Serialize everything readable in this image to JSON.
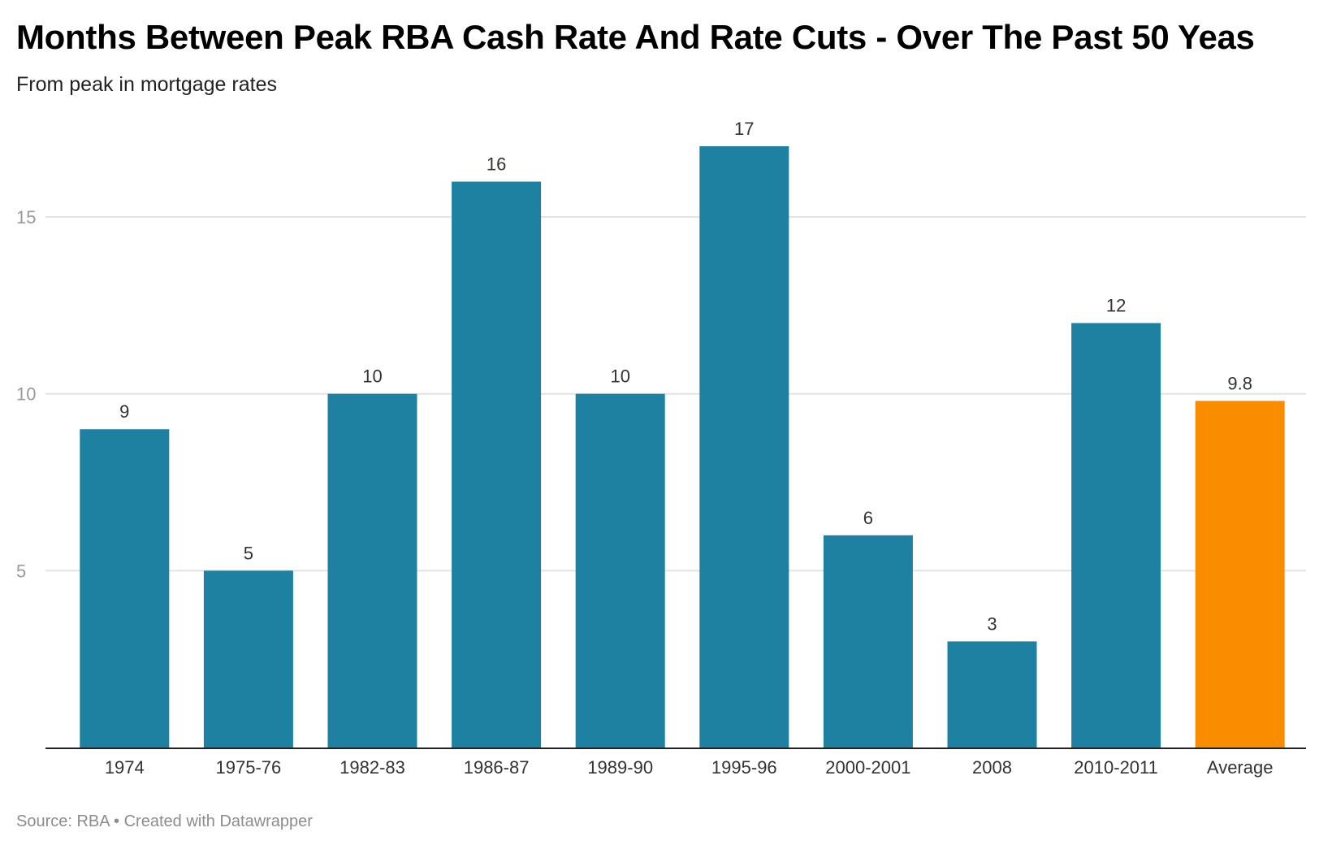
{
  "chart_data": {
    "type": "bar",
    "title": "Months Between Peak RBA Cash Rate And Rate Cuts - Over The Past 50 Yeas",
    "subtitle": "From peak in mortgage rates",
    "categories": [
      "1974",
      "1975-76",
      "1982-83",
      "1986-87",
      "1989-90",
      "1995-96",
      "2000-2001",
      "2008",
      "2010-2011",
      "Average"
    ],
    "values": [
      9,
      5,
      10,
      16,
      10,
      17,
      6,
      3,
      12,
      9.8
    ],
    "value_labels": [
      "9",
      "5",
      "10",
      "16",
      "10",
      "17",
      "6",
      "3",
      "12",
      "9.8"
    ],
    "y_ticks": [
      5,
      10,
      15
    ],
    "y_tick_labels": [
      "5",
      "10",
      "15"
    ],
    "ylim": [
      0,
      17
    ],
    "grid": true,
    "legend": "none",
    "colors": {
      "bar": "#1f81a2",
      "highlight": "#fa8c00",
      "highlight_category": "Average",
      "grid": "#e3e3e3",
      "baseline": "#222222"
    },
    "source": "Source: RBA • Created with Datawrapper"
  }
}
